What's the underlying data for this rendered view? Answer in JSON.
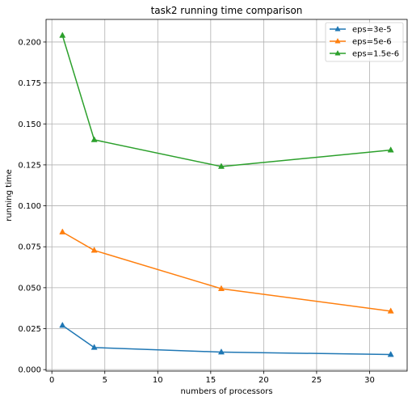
{
  "chart_data": {
    "type": "line",
    "title": "task2 running time comparison",
    "xlabel": "numbers of processors",
    "ylabel": "running time",
    "x": [
      1,
      4,
      16,
      32
    ],
    "xlim": [
      -0.55,
      33.55
    ],
    "ylim": [
      -0.0009,
      0.2138
    ],
    "xticks": [
      0,
      5,
      10,
      15,
      20,
      25,
      30
    ],
    "yticks": [
      0.0,
      0.025,
      0.05,
      0.075,
      0.1,
      0.125,
      0.15,
      0.175,
      0.2
    ],
    "grid": true,
    "legend_position": "top-right",
    "marker": "triangle",
    "series": [
      {
        "name": "eps=3e-5",
        "color": "#1f77b4",
        "values": [
          0.027,
          0.0135,
          0.0107,
          0.0092
        ]
      },
      {
        "name": "eps=5e-6",
        "color": "#ff7f0e",
        "values": [
          0.084,
          0.0728,
          0.0494,
          0.0357
        ]
      },
      {
        "name": "eps=1.5e-6",
        "color": "#2ca02c",
        "values": [
          0.204,
          0.1403,
          0.124,
          0.134
        ]
      }
    ]
  }
}
